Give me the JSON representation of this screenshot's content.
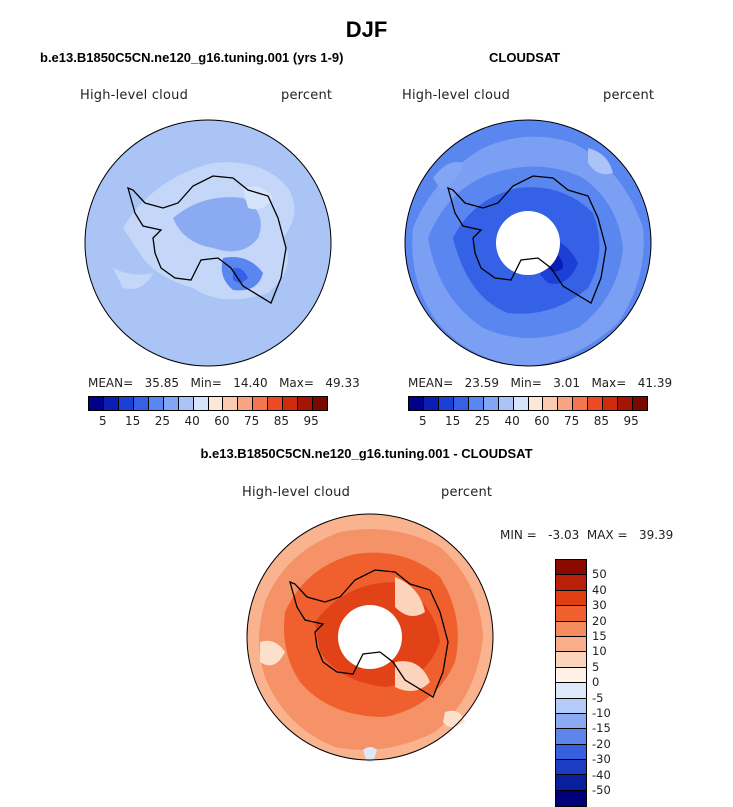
{
  "title": "DJF",
  "panels": [
    {
      "id": "model",
      "title": "b.e13.B1850C5CN.ne120_g16.tuning.001 (yrs 1-9)",
      "variable": "High-level cloud",
      "units": "percent",
      "stats": {
        "mean_label": "MEAN=",
        "mean": "35.85",
        "min_label": "Min=",
        "min": "14.40",
        "max_label": "Max=",
        "max": "49.33"
      },
      "colorbar_ticks": [
        "5",
        "15",
        "25",
        "40",
        "60",
        "75",
        "85",
        "95"
      ]
    },
    {
      "id": "obs",
      "title": "CLOUDSAT",
      "variable": "High-level cloud",
      "units": "percent",
      "stats": {
        "mean_label": "MEAN=",
        "mean": "23.59",
        "min_label": "Min=",
        "min": "3.01",
        "max_label": "Max=",
        "max": "41.39"
      },
      "colorbar_ticks": [
        "5",
        "15",
        "25",
        "40",
        "60",
        "75",
        "85",
        "95"
      ]
    }
  ],
  "diff": {
    "title": "b.e13.B1850C5CN.ne120_g16.tuning.001 - CLOUDSAT",
    "variable": "High-level cloud",
    "units": "percent",
    "minmax": "MIN =   -3.03  MAX =   39.39",
    "colorbar_ticks": [
      "50",
      "40",
      "30",
      "20",
      "15",
      "10",
      "5",
      "0",
      "-5",
      "-10",
      "-15",
      "-20",
      "-30",
      "-40",
      "-50"
    ]
  },
  "colors": {
    "seq_colorbar": [
      "#00008b",
      "#0a1eb4",
      "#1c3fd6",
      "#3561e6",
      "#5a86ef",
      "#83a6f4",
      "#aac4f8",
      "#d6e4fb",
      "#fde8d8",
      "#fccab0",
      "#f9a47f",
      "#f5754e",
      "#ec4a23",
      "#cf2b0c",
      "#a31505",
      "#7a0a00"
    ],
    "div_colorbar": [
      "#8b0a00",
      "#b8200a",
      "#df3d14",
      "#f0602e",
      "#f58a5c",
      "#f9ae8b",
      "#fcd4bc",
      "#fff1e6",
      "#dde8fb",
      "#b3cbf8",
      "#8aaaf2",
      "#5e86ea",
      "#3660e0",
      "#1c3cc4",
      "#0a1f9e",
      "#00007a"
    ],
    "model_bg": "#a9c4f5",
    "obs_bg": "#5a86ef",
    "diff_bg": "#f7b08e"
  }
}
